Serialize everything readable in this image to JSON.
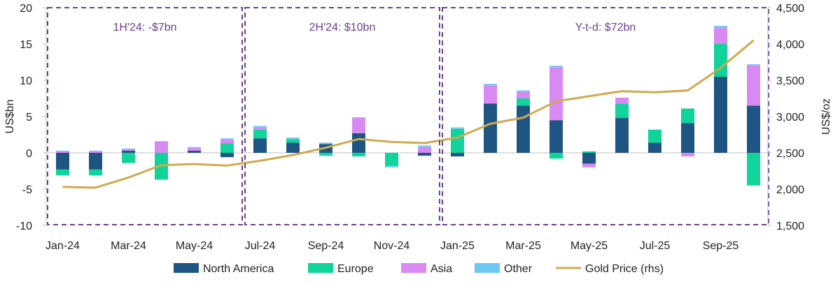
{
  "chart_data": {
    "type": "bar",
    "subtype": "stacked-bar-with-line",
    "categories": [
      "Jan-24",
      "Feb-24",
      "Mar-24",
      "Apr-24",
      "May-24",
      "Jun-24",
      "Jul-24",
      "Aug-24",
      "Sep-24",
      "Oct-24",
      "Nov-24",
      "Dec-24",
      "Jan-25",
      "Feb-25",
      "Mar-25",
      "Apr-25",
      "May-25",
      "Jun-25",
      "Jul-25",
      "Aug-25",
      "Sep-25",
      "Oct-25"
    ],
    "x_tick_labels": [
      "Jan-24",
      "Mar-24",
      "May-24",
      "Jul-24",
      "Sep-24",
      "Nov-24",
      "Jan-25",
      "Mar-25",
      "May-25",
      "Jul-25",
      "Sep-25"
    ],
    "series": [
      {
        "name": "North America",
        "color": "#1f5582",
        "values": [
          -2.3,
          -2.3,
          0.3,
          0.0,
          0.3,
          -0.6,
          2.0,
          1.4,
          1.2,
          2.7,
          0.0,
          -0.4,
          -0.5,
          6.8,
          6.5,
          4.5,
          -1.5,
          4.8,
          1.4,
          4.1,
          10.5,
          6.5
        ]
      },
      {
        "name": "Europe",
        "color": "#10d49a",
        "values": [
          -0.8,
          -0.8,
          -1.4,
          -3.7,
          0.0,
          1.3,
          1.2,
          0.5,
          -0.4,
          -0.5,
          -1.8,
          0.0,
          3.3,
          0.0,
          1.0,
          -0.8,
          0.2,
          2.0,
          1.8,
          2.0,
          4.5,
          -4.5
        ]
      },
      {
        "name": "Asia",
        "color": "#d98af2",
        "values": [
          0.2,
          0.2,
          0.2,
          1.6,
          0.4,
          0.6,
          0.3,
          0.0,
          0.0,
          2.1,
          0.0,
          0.8,
          0.0,
          2.5,
          0.9,
          7.3,
          -0.5,
          0.8,
          0.0,
          -0.5,
          2.2,
          5.6
        ]
      },
      {
        "name": "Other",
        "color": "#6fc8f4",
        "values": [
          0.1,
          0.1,
          0.1,
          0.0,
          0.1,
          0.1,
          0.2,
          0.2,
          0.2,
          0.1,
          -0.2,
          0.2,
          0.2,
          0.2,
          0.2,
          0.2,
          0.0,
          0.0,
          0.0,
          0.0,
          0.3,
          0.1
        ]
      }
    ],
    "line_series": {
      "name": "Gold Price (rhs)",
      "color": "#cfaa4e",
      "axis": "right",
      "values": [
        2030,
        2020,
        2160,
        2330,
        2345,
        2325,
        2390,
        2470,
        2570,
        2690,
        2650,
        2635,
        2710,
        2900,
        2985,
        3210,
        3280,
        3350,
        3335,
        3360,
        3670,
        4050
      ]
    },
    "ylabel": "US$bn",
    "ylim": [
      -10,
      20
    ],
    "yticks": [
      -10,
      -5,
      0,
      5,
      10,
      15,
      20
    ],
    "y2label": "US$/oz",
    "y2lim": [
      1500,
      4500
    ],
    "y2ticks": [
      "1,500",
      "2,000",
      "2,500",
      "3,000",
      "3,500",
      "4,000",
      "4,500"
    ],
    "y2tick_values": [
      1500,
      2000,
      2500,
      3000,
      3500,
      4000,
      4500
    ],
    "periods": [
      {
        "label": "1H'24: -$7bn",
        "from": 0,
        "to": 5
      },
      {
        "label": "2H'24: $10bn",
        "from": 6,
        "to": 11
      },
      {
        "label": "Y-t-d: $72bn",
        "from": 12,
        "to": 21
      }
    ],
    "legend_position": "bottom"
  }
}
